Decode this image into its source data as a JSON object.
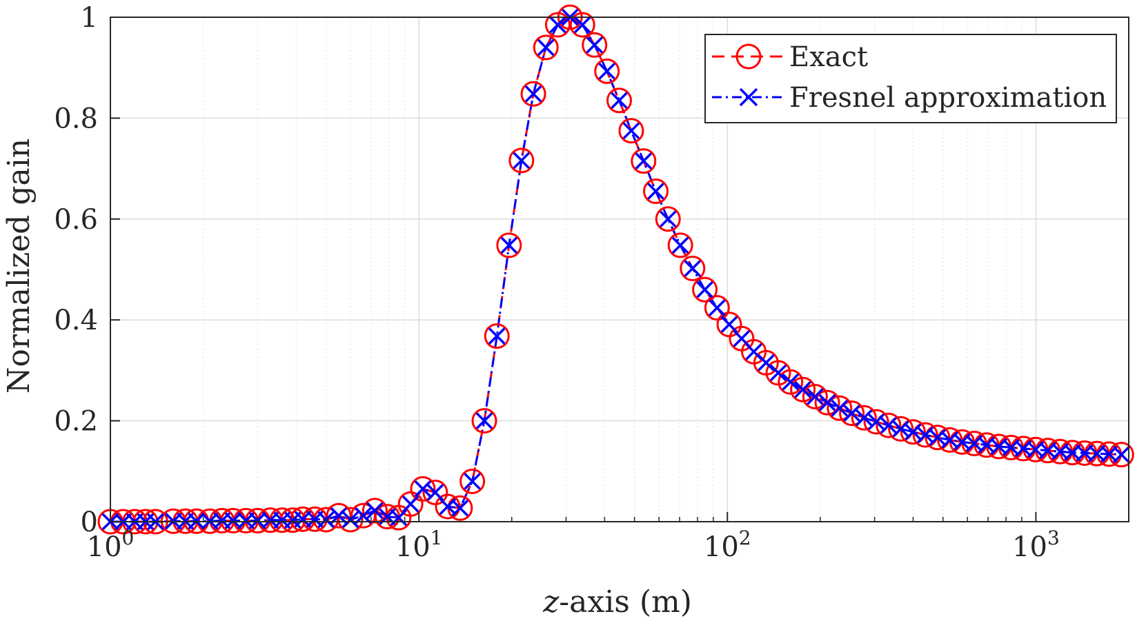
{
  "chart_data": {
    "type": "line",
    "xscale": "log",
    "xlim": [
      1,
      2000
    ],
    "ylim": [
      0,
      1
    ],
    "ylabel": "Normalized gain",
    "xlabel_var": "z",
    "xlabel_rest": "-axis (m)",
    "x_ticks": [
      1,
      10,
      100,
      1000
    ],
    "x_tick_base": "10",
    "x_tick_exps": [
      "0",
      "1",
      "2",
      "3"
    ],
    "y_ticks": [
      0,
      0.2,
      0.4,
      0.6,
      0.8,
      1
    ],
    "y_tick_labels": [
      "0",
      "0.2",
      "0.4",
      "0.6",
      "0.8",
      "1"
    ],
    "legend_position": "top-right",
    "colors": {
      "exact": "#ff0000",
      "fresnel": "#0000ff",
      "axis": "#262626",
      "grid": "#dcdcdc"
    },
    "x": [
      1.0,
      1.1,
      1.2,
      1.3,
      1.4,
      1.6,
      1.75,
      1.9,
      2.1,
      2.3,
      2.5,
      2.75,
      3.0,
      3.3,
      3.6,
      3.9,
      4.2,
      4.6,
      5.0,
      5.5,
      6.0,
      6.6,
      7.2,
      7.9,
      8.6,
      9.4,
      10.3,
      11.3,
      12.4,
      13.6,
      14.9,
      16.3,
      17.9,
      19.6,
      21.5,
      23.5,
      25.8,
      28.2,
      30.9,
      33.9,
      37.1,
      40.7,
      44.6,
      48.8,
      53.5,
      58.6,
      64.2,
      70.4,
      77.1,
      84.5,
      92.6,
      101.4,
      111.2,
      121.8,
      133.5,
      146.2,
      160.2,
      175.6,
      192.4,
      210.8,
      231.0,
      253.1,
      277.3,
      303.9,
      333.0,
      364.9,
      399.8,
      438.1,
      480.0,
      526.0,
      576.4,
      631.6,
      692.1,
      758.4,
      831.0,
      910.6,
      997.8,
      1093.4,
      1198.2,
      1313.0,
      1438.8,
      1576.6,
      1727.6,
      1893.1
    ],
    "series": [
      {
        "name": "Exact",
        "color": "#ff0000",
        "line": "dashed",
        "marker": "circle",
        "values": [
          0.0,
          0.0,
          0.0,
          0.0,
          0.0,
          0.001,
          0.001,
          0.001,
          0.001,
          0.002,
          0.002,
          0.002,
          0.002,
          0.003,
          0.003,
          0.003,
          0.005,
          0.005,
          0.004,
          0.012,
          0.004,
          0.012,
          0.022,
          0.01,
          0.008,
          0.035,
          0.065,
          0.058,
          0.03,
          0.027,
          0.08,
          0.2,
          0.368,
          0.548,
          0.716,
          0.848,
          0.94,
          0.985,
          1.0,
          0.985,
          0.945,
          0.893,
          0.835,
          0.775,
          0.715,
          0.655,
          0.6,
          0.548,
          0.502,
          0.46,
          0.424,
          0.391,
          0.363,
          0.337,
          0.315,
          0.295,
          0.277,
          0.262,
          0.248,
          0.236,
          0.225,
          0.215,
          0.206,
          0.198,
          0.191,
          0.184,
          0.178,
          0.172,
          0.167,
          0.162,
          0.158,
          0.155,
          0.152,
          0.149,
          0.147,
          0.145,
          0.143,
          0.141,
          0.139,
          0.137,
          0.136,
          0.135,
          0.134,
          0.133
        ]
      },
      {
        "name": "Fresnel approximation",
        "color": "#0000ff",
        "line": "dashdot",
        "marker": "x",
        "values": [
          0.0,
          0.0,
          0.0,
          0.0,
          0.0,
          0.001,
          0.001,
          0.001,
          0.001,
          0.002,
          0.002,
          0.002,
          0.002,
          0.003,
          0.003,
          0.003,
          0.005,
          0.005,
          0.004,
          0.012,
          0.004,
          0.012,
          0.022,
          0.01,
          0.008,
          0.035,
          0.065,
          0.058,
          0.03,
          0.027,
          0.08,
          0.2,
          0.368,
          0.548,
          0.716,
          0.848,
          0.94,
          0.985,
          1.0,
          0.985,
          0.945,
          0.893,
          0.835,
          0.775,
          0.715,
          0.655,
          0.6,
          0.548,
          0.502,
          0.46,
          0.424,
          0.391,
          0.363,
          0.337,
          0.315,
          0.295,
          0.277,
          0.262,
          0.248,
          0.236,
          0.225,
          0.215,
          0.206,
          0.198,
          0.191,
          0.184,
          0.178,
          0.172,
          0.167,
          0.162,
          0.158,
          0.155,
          0.152,
          0.149,
          0.147,
          0.145,
          0.143,
          0.141,
          0.139,
          0.137,
          0.136,
          0.135,
          0.134,
          0.133
        ]
      }
    ]
  }
}
